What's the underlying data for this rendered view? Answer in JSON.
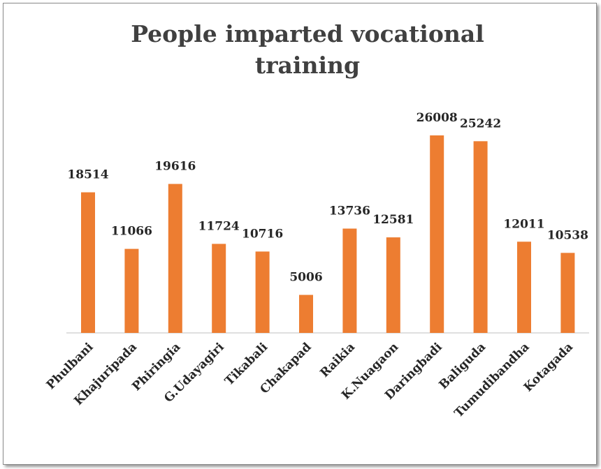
{
  "chart_data": {
    "type": "bar",
    "title": "People imparted vocational training",
    "categories": [
      "Phulbani",
      "Khajuripada",
      "Phiringia",
      "G.Udayagiri",
      "Tikabali",
      "Chakapad",
      "Raikia",
      "K.Nuagaon",
      "Daringbadi",
      "Baliguda",
      "Tumudibandha",
      "Kotagada"
    ],
    "values": [
      18514,
      11066,
      19616,
      11724,
      10716,
      5006,
      13736,
      12581,
      26008,
      25242,
      12011,
      10538
    ],
    "color": "#ed7d31"
  }
}
